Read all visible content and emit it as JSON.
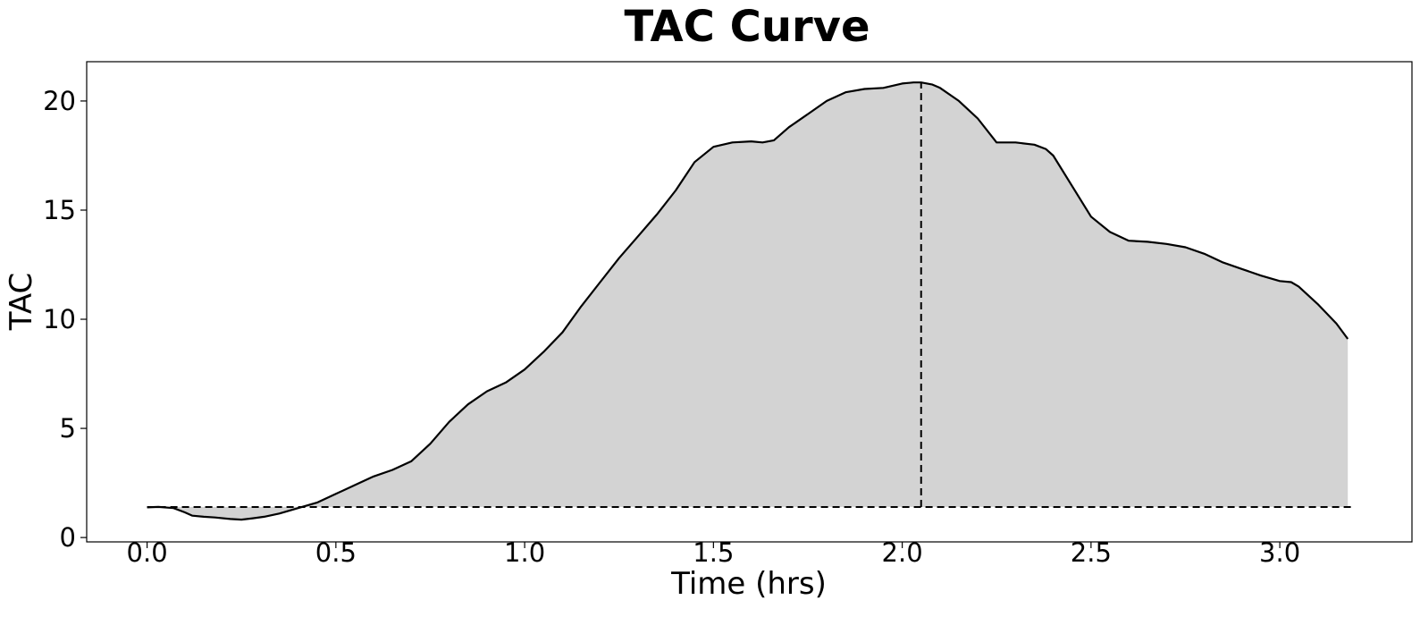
{
  "chart_data": {
    "type": "area",
    "title": "TAC Curve",
    "xlabel": "Time (hrs)",
    "ylabel": "TAC",
    "xlim": [
      -0.16,
      3.35
    ],
    "ylim": [
      -0.2,
      21.8
    ],
    "grid": false,
    "legend": "none",
    "xticks": [
      0.0,
      0.5,
      1.0,
      1.5,
      2.0,
      2.5,
      3.0
    ],
    "xtick_labels": [
      "0.0",
      "0.5",
      "1.0",
      "1.5",
      "2.0",
      "2.5",
      "3.0"
    ],
    "yticks": [
      0,
      5,
      10,
      15,
      20
    ],
    "ytick_labels": [
      "0",
      "5",
      "10",
      "15",
      "20"
    ],
    "colors": {
      "line": "#000000",
      "fill": "#d3d3d3"
    },
    "series": [
      {
        "x": [
          0.0,
          0.03,
          0.07,
          0.1,
          0.12,
          0.15,
          0.18,
          0.22,
          0.25,
          0.28,
          0.31,
          0.35,
          0.4,
          0.45,
          0.5,
          0.55,
          0.6,
          0.65,
          0.7,
          0.75,
          0.8,
          0.85,
          0.9,
          0.95,
          1.0,
          1.05,
          1.1,
          1.15,
          1.2,
          1.25,
          1.3,
          1.35,
          1.4,
          1.45,
          1.5,
          1.55,
          1.6,
          1.63,
          1.66,
          1.7,
          1.75,
          1.8,
          1.85,
          1.9,
          1.95,
          2.0,
          2.03,
          2.05,
          2.08,
          2.1,
          2.15,
          2.2,
          2.25,
          2.3,
          2.35,
          2.38,
          2.4,
          2.45,
          2.5,
          2.55,
          2.6,
          2.65,
          2.7,
          2.75,
          2.8,
          2.85,
          2.9,
          2.95,
          3.0,
          3.03,
          3.05,
          3.1,
          3.15,
          3.18
        ],
        "y": [
          1.38,
          1.4,
          1.35,
          1.15,
          1.0,
          0.95,
          0.92,
          0.85,
          0.82,
          0.88,
          0.95,
          1.1,
          1.35,
          1.6,
          2.0,
          2.4,
          2.8,
          3.1,
          3.5,
          4.3,
          5.3,
          6.1,
          6.7,
          7.1,
          7.7,
          8.5,
          9.4,
          10.6,
          11.7,
          12.8,
          13.8,
          14.8,
          15.9,
          17.2,
          17.9,
          18.1,
          18.15,
          18.1,
          18.2,
          18.8,
          19.4,
          20.0,
          20.4,
          20.55,
          20.6,
          20.8,
          20.85,
          20.85,
          20.75,
          20.6,
          20.0,
          19.2,
          18.1,
          18.1,
          18.0,
          17.8,
          17.5,
          16.1,
          14.7,
          14.0,
          13.6,
          13.55,
          13.45,
          13.3,
          13.0,
          12.6,
          12.3,
          12.0,
          11.75,
          11.7,
          11.5,
          10.7,
          9.8,
          9.1
        ]
      }
    ],
    "annotations": {
      "baseline_y": 1.4,
      "peak_x": 2.05,
      "peak_y": 20.85
    }
  }
}
